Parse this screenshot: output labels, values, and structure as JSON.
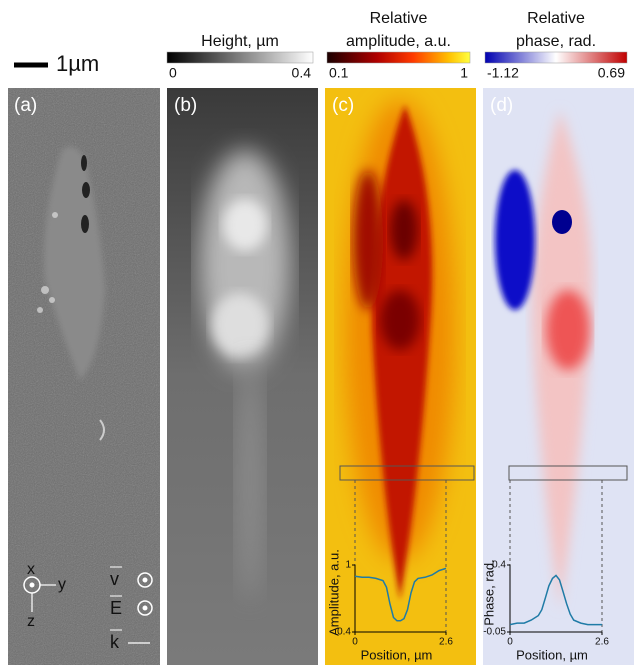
{
  "scale_bar": "1µm",
  "panels": [
    {
      "label": "(a)"
    },
    {
      "label": "(b)",
      "colorbar": {
        "title": [
          "Height, µm"
        ],
        "min": 0,
        "max": 0.4
      }
    },
    {
      "label": "(c)",
      "colorbar": {
        "title": [
          "Relative",
          "amplitude, a.u."
        ],
        "min": 0.1,
        "max": 1
      }
    },
    {
      "label": "(d)",
      "colorbar": {
        "title": [
          "Relative",
          "phase, rad."
        ],
        "min": -1.12,
        "max": 0.69
      }
    }
  ],
  "axes_symbols": {
    "x": "x",
    "y": "y",
    "z": "z",
    "v": "v",
    "E": "E",
    "k": "k"
  },
  "insets": [
    {
      "type": "line",
      "xlabel": "Position, µm",
      "ylabel": "Amplitude, a.u.",
      "color": "#1f7ba6",
      "x": [
        0,
        0.2,
        0.4,
        0.6,
        0.8,
        0.9,
        1.0,
        1.1,
        1.2,
        1.3,
        1.4,
        1.5,
        1.6,
        1.7,
        1.8,
        2.0,
        2.2,
        2.4,
        2.6
      ],
      "values": [
        0.9,
        0.89,
        0.89,
        0.88,
        0.86,
        0.8,
        0.65,
        0.53,
        0.5,
        0.5,
        0.52,
        0.6,
        0.75,
        0.85,
        0.88,
        0.89,
        0.91,
        0.95,
        0.97
      ],
      "xlim": [
        0,
        2.6
      ],
      "ylim": [
        0.4,
        1
      ],
      "xticks": [
        0,
        2.6
      ],
      "yticks": [
        0.4,
        1
      ]
    },
    {
      "type": "line",
      "xlabel": "Position, µm",
      "ylabel": "Phase, rad.",
      "color": "#1f7ba6",
      "x": [
        0,
        0.2,
        0.4,
        0.6,
        0.8,
        0.9,
        1.0,
        1.1,
        1.2,
        1.3,
        1.4,
        1.5,
        1.6,
        1.7,
        1.8,
        2.0,
        2.2,
        2.4,
        2.6
      ],
      "values": [
        0,
        0.01,
        0.01,
        0.03,
        0.06,
        0.1,
        0.18,
        0.26,
        0.31,
        0.33,
        0.3,
        0.22,
        0.14,
        0.07,
        0.03,
        0.01,
        0.0,
        0.0,
        0.0
      ],
      "xlim": [
        0,
        2.6
      ],
      "ylim": [
        -0.05,
        0.4
      ],
      "xticks": [
        0,
        2.6
      ],
      "yticks": [
        -0.05,
        0.4
      ]
    }
  ]
}
